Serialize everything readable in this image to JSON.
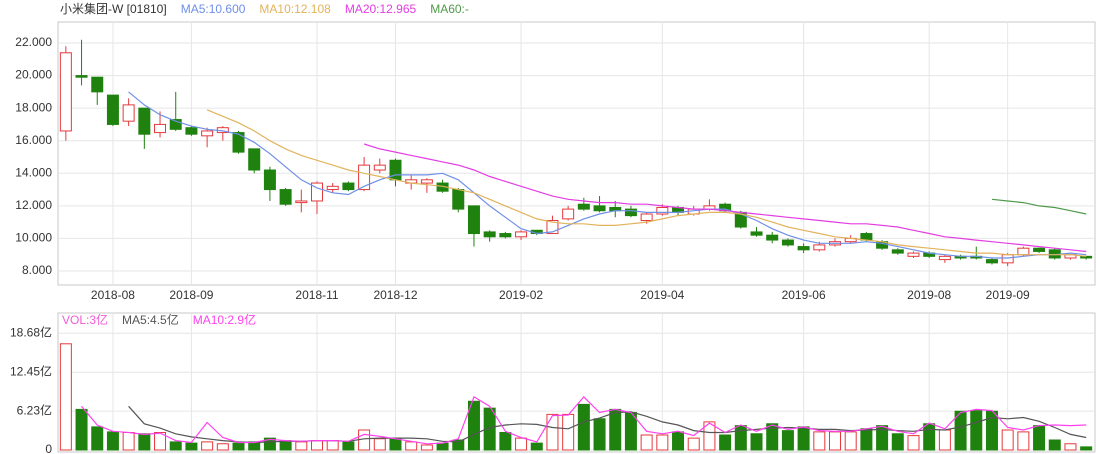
{
  "chart_data": [
    {
      "type": "candlestick",
      "title": "小米集团-W [01810]",
      "up_color": "#e4393c",
      "down_color": "#1f820f",
      "categories": [
        null,
        null,
        null,
        "2018-08",
        null,
        null,
        null,
        null,
        "2018-09",
        null,
        null,
        null,
        null,
        null,
        null,
        null,
        "2018-11",
        null,
        null,
        null,
        null,
        "2018-12",
        null,
        null,
        null,
        null,
        null,
        null,
        null,
        "2019-02",
        null,
        null,
        null,
        null,
        null,
        null,
        null,
        null,
        "2019-04",
        null,
        null,
        null,
        null,
        null,
        null,
        null,
        null,
        "2019-06",
        null,
        null,
        null,
        null,
        null,
        null,
        null,
        "2019-08",
        null,
        null,
        null,
        null,
        "2019-09",
        null,
        null,
        null,
        null,
        null
      ],
      "open": [
        16.6,
        20.0,
        19.9,
        18.8,
        17.2,
        18.0,
        16.5,
        17.3,
        16.8,
        16.3,
        16.5,
        16.5,
        15.5,
        14.2,
        13.0,
        12.2,
        12.3,
        13.0,
        13.4,
        13.0,
        14.2,
        14.8,
        13.4,
        13.4,
        13.4,
        13.0,
        12.0,
        10.4,
        10.3,
        10.1,
        10.5,
        10.3,
        11.2,
        12.1,
        12.0,
        11.9,
        11.8,
        11.1,
        11.5,
        11.9,
        11.5,
        11.8,
        12.1,
        11.6,
        10.4,
        10.2,
        9.9,
        9.5,
        9.3,
        9.6,
        9.8,
        10.3,
        9.8,
        9.3,
        8.9,
        9.1,
        8.7,
        8.9,
        8.9,
        8.7,
        8.5,
        9.0,
        9.4,
        9.3,
        8.8,
        8.9
      ],
      "high": [
        21.8,
        22.2,
        19.9,
        18.8,
        18.6,
        18.0,
        17.8,
        19.0,
        16.9,
        16.8,
        16.9,
        16.6,
        15.5,
        14.4,
        13.1,
        13.0,
        13.5,
        13.4,
        13.5,
        15.0,
        14.9,
        14.9,
        13.9,
        13.7,
        13.6,
        13.1,
        12.0,
        10.5,
        10.4,
        10.5,
        10.5,
        11.4,
        12.0,
        12.5,
        12.6,
        12.3,
        12.0,
        11.6,
        12.1,
        12.0,
        12.0,
        12.4,
        12.2,
        11.7,
        10.7,
        10.4,
        10.0,
        9.7,
        9.8,
        10.0,
        10.2,
        10.4,
        9.9,
        9.4,
        9.2,
        9.2,
        9.0,
        9.0,
        9.5,
        8.8,
        9.1,
        9.5,
        9.4,
        9.4,
        9.0,
        8.9
      ],
      "low": [
        16.0,
        19.4,
        18.2,
        16.9,
        16.9,
        15.5,
        16.2,
        16.6,
        16.3,
        15.6,
        16.0,
        15.2,
        14.0,
        12.3,
        12.0,
        11.6,
        11.5,
        12.8,
        12.9,
        12.9,
        14.0,
        13.2,
        13.0,
        12.8,
        12.8,
        11.6,
        9.5,
        9.8,
        10.0,
        9.9,
        10.2,
        10.3,
        11.1,
        11.7,
        11.6,
        11.3,
        11.3,
        10.9,
        11.4,
        11.4,
        11.4,
        11.7,
        11.6,
        10.6,
        10.1,
        9.7,
        9.5,
        9.1,
        9.2,
        9.5,
        9.7,
        9.8,
        9.3,
        9.0,
        8.8,
        8.8,
        8.5,
        8.7,
        8.7,
        8.4,
        8.3,
        8.9,
        9.1,
        8.7,
        8.7,
        8.7
      ],
      "close": [
        21.4,
        19.9,
        19.0,
        17.0,
        18.2,
        16.4,
        17.0,
        16.7,
        16.4,
        16.6,
        16.8,
        15.3,
        14.2,
        13.0,
        12.1,
        12.3,
        13.4,
        13.2,
        13.0,
        14.5,
        14.5,
        13.6,
        13.6,
        13.6,
        12.9,
        11.8,
        10.3,
        10.1,
        10.1,
        10.4,
        10.3,
        11.1,
        11.8,
        11.8,
        11.7,
        11.7,
        11.4,
        11.5,
        11.9,
        11.6,
        11.8,
        12.0,
        11.7,
        10.7,
        10.2,
        9.9,
        9.6,
        9.3,
        9.6,
        9.8,
        10.0,
        9.9,
        9.4,
        9.1,
        9.1,
        8.9,
        8.9,
        8.8,
        8.8,
        8.5,
        9.0,
        9.4,
        9.2,
        8.8,
        9.0,
        8.8
      ],
      "series": [
        {
          "name": "MA5:10.600",
          "color": "#6f8fe8",
          "values": [
            null,
            null,
            null,
            null,
            19.0,
            18.2,
            17.6,
            17.2,
            16.9,
            16.7,
            16.6,
            16.4,
            15.9,
            15.2,
            14.4,
            13.6,
            13.1,
            12.8,
            12.7,
            13.2,
            13.6,
            13.9,
            13.9,
            13.9,
            14.0,
            13.6,
            12.8,
            12.0,
            11.3,
            10.6,
            10.3,
            10.4,
            10.8,
            11.2,
            11.5,
            11.7,
            11.7,
            11.6,
            11.6,
            11.6,
            11.7,
            11.8,
            11.8,
            11.5,
            11.1,
            10.6,
            10.2,
            9.9,
            9.7,
            9.7,
            9.7,
            9.8,
            9.7,
            9.5,
            9.3,
            9.1,
            9.0,
            8.9,
            8.9,
            8.8,
            8.8,
            8.9,
            9.0,
            9.0,
            9.1,
            9.0
          ]
        },
        {
          "name": "MA10:12.108",
          "color": "#e2b35c",
          "values": [
            null,
            null,
            null,
            null,
            null,
            null,
            null,
            null,
            null,
            17.9,
            17.5,
            17.1,
            16.6,
            16.0,
            15.5,
            15.1,
            14.8,
            14.5,
            14.2,
            14.0,
            13.8,
            13.6,
            13.4,
            13.3,
            13.2,
            13.0,
            12.8,
            12.4,
            12.0,
            11.6,
            11.2,
            11.0,
            10.9,
            10.9,
            10.8,
            10.8,
            10.9,
            11.0,
            11.2,
            11.4,
            11.5,
            11.6,
            11.6,
            11.5,
            11.3,
            11.0,
            10.7,
            10.5,
            10.3,
            10.1,
            10.0,
            9.9,
            9.8,
            9.6,
            9.5,
            9.4,
            9.3,
            9.2,
            9.1,
            9.1,
            9.0,
            9.0,
            9.0,
            9.0,
            9.0,
            8.9
          ]
        },
        {
          "name": "MA20:12.965",
          "color": "#e33de3",
          "values": [
            null,
            null,
            null,
            null,
            null,
            null,
            null,
            null,
            null,
            null,
            null,
            null,
            null,
            null,
            null,
            null,
            null,
            null,
            null,
            15.8,
            15.5,
            15.3,
            15.1,
            14.9,
            14.7,
            14.5,
            14.2,
            13.8,
            13.5,
            13.2,
            12.9,
            12.6,
            12.4,
            12.3,
            12.2,
            12.2,
            12.1,
            12.1,
            12.0,
            11.9,
            11.8,
            11.8,
            11.7,
            11.6,
            11.5,
            11.4,
            11.3,
            11.2,
            11.1,
            11.0,
            10.9,
            10.9,
            10.8,
            10.7,
            10.5,
            10.3,
            10.1,
            10.0,
            9.9,
            9.8,
            9.7,
            9.6,
            9.5,
            9.4,
            9.3,
            9.2
          ]
        },
        {
          "name": "MA60:-",
          "color": "#4f9a4a",
          "values": [
            null,
            null,
            null,
            null,
            null,
            null,
            null,
            null,
            null,
            null,
            null,
            null,
            null,
            null,
            null,
            null,
            null,
            null,
            null,
            null,
            null,
            null,
            null,
            null,
            null,
            null,
            null,
            null,
            null,
            null,
            null,
            null,
            null,
            null,
            null,
            null,
            null,
            null,
            null,
            null,
            null,
            null,
            null,
            null,
            null,
            null,
            null,
            null,
            null,
            null,
            null,
            null,
            null,
            null,
            null,
            null,
            null,
            null,
            null,
            12.4,
            12.3,
            12.2,
            12.0,
            11.9,
            11.7,
            11.5
          ]
        }
      ],
      "ylim": [
        7.14,
        23.29
      ],
      "yticks": [
        {
          "value": 8,
          "label": "8.000"
        },
        {
          "value": 10,
          "label": "10.000"
        },
        {
          "value": 12,
          "label": "12.000"
        },
        {
          "value": 14,
          "label": "14.000"
        },
        {
          "value": 16,
          "label": "16.000"
        },
        {
          "value": 18,
          "label": "18.000"
        },
        {
          "value": 20,
          "label": "20.000"
        },
        {
          "value": 22,
          "label": "22.000"
        }
      ],
      "grid": true
    },
    {
      "type": "bar",
      "series": [
        {
          "name": "VOL:3亿",
          "color": "#f25ad6",
          "values": [
            17.0,
            6.5,
            3.7,
            2.9,
            2.8,
            2.6,
            2.8,
            1.3,
            1.1,
            1.3,
            1.0,
            1.1,
            1.3,
            1.9,
            1.5,
            1.3,
            1.5,
            1.5,
            1.3,
            3.2,
            1.8,
            1.8,
            1.3,
            0.8,
            1.1,
            1.6,
            7.8,
            6.7,
            2.8,
            1.9,
            1.1,
            5.7,
            5.7,
            7.3,
            5.0,
            6.5,
            6.0,
            2.4,
            2.4,
            2.9,
            1.9,
            4.5,
            2.4,
            3.9,
            2.6,
            4.2,
            3.1,
            3.7,
            2.9,
            2.9,
            2.9,
            3.4,
            3.9,
            2.6,
            2.3,
            4.2,
            3.2,
            6.2,
            6.3,
            6.2,
            3.2,
            2.9,
            3.9,
            1.6,
            1.0,
            0.5
          ]
        },
        {
          "name": "MA5:4.5亿",
          "color": "#555555",
          "values": [
            null,
            null,
            null,
            null,
            7.0,
            4.2,
            3.5,
            2.6,
            2.1,
            1.8,
            1.5,
            1.3,
            1.2,
            1.3,
            1.4,
            1.4,
            1.5,
            1.5,
            1.4,
            1.8,
            1.9,
            1.9,
            1.9,
            1.8,
            1.4,
            1.3,
            2.5,
            3.6,
            4.0,
            4.2,
            4.1,
            3.6,
            3.4,
            4.5,
            5.1,
            6.0,
            6.1,
            5.4,
            4.5,
            4.0,
            3.1,
            2.8,
            2.8,
            3.1,
            3.3,
            3.5,
            3.6,
            3.5,
            3.3,
            3.3,
            3.1,
            3.2,
            3.3,
            3.1,
            3.0,
            3.3,
            3.2,
            3.7,
            4.4,
            5.2,
            5.0,
            5.2,
            4.6,
            3.6,
            2.5,
            2.0
          ]
        },
        {
          "name": "MA10:2.9亿",
          "color": "#ff40f0",
          "values": [
            null,
            7.0,
            4.0,
            3.0,
            2.8,
            2.5,
            2.7,
            1.5,
            1.2,
            4.4,
            2.0,
            1.2,
            1.2,
            1.7,
            1.5,
            1.4,
            1.5,
            1.5,
            1.4,
            2.5,
            2.2,
            1.8,
            1.4,
            1.0,
            1.1,
            1.8,
            8.5,
            7.0,
            3.0,
            2.0,
            1.3,
            5.5,
            5.6,
            8.5,
            6.0,
            6.5,
            6.0,
            3.0,
            2.6,
            3.0,
            2.3,
            4.3,
            2.8,
            4.0,
            3.0,
            4.0,
            3.3,
            3.7,
            3.1,
            3.0,
            3.0,
            3.4,
            3.8,
            3.0,
            2.6,
            4.3,
            3.4,
            6.0,
            6.5,
            6.3,
            3.6,
            3.2,
            3.9,
            4.0,
            3.9,
            4.0
          ]
        }
      ],
      "ylim": [
        -0.32,
        21.93
      ],
      "yticks": [
        0,
        {
          "value": 6.23,
          "label": "6.23亿"
        },
        {
          "value": 12.45,
          "label": "12.45亿"
        },
        {
          "value": 18.68,
          "label": "18.68亿"
        }
      ],
      "grid": true
    }
  ]
}
